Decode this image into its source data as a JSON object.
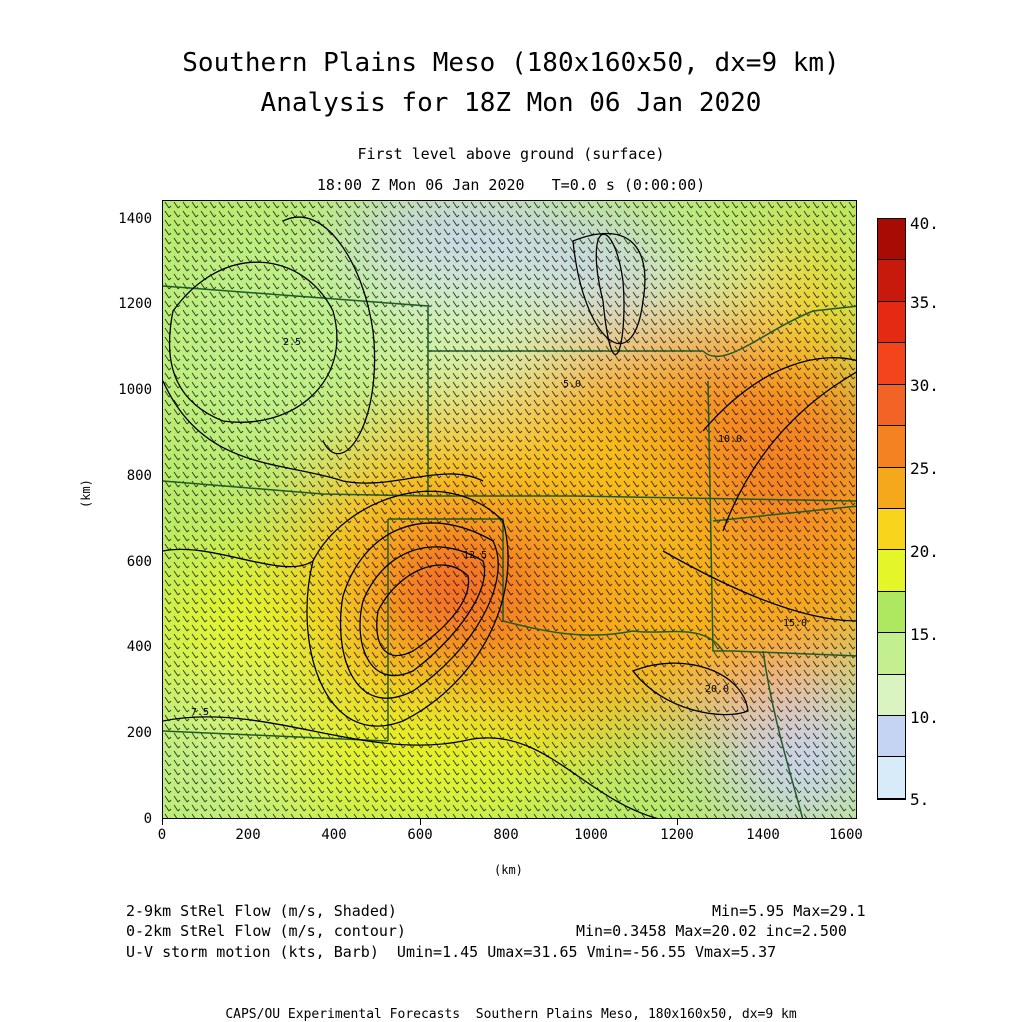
{
  "header": {
    "title_line1": "Southern Plains Meso (180x160x50, dx=9 km)",
    "title_line2": "Analysis for 18Z Mon 06 Jan 2020",
    "level": "First level above ground (surface)",
    "valid": "18:00 Z Mon 06 Jan 2020   T=0.0 s (0:00:00)"
  },
  "axes": {
    "x_label": "(km)",
    "y_label": "(km)",
    "x_ticks": [
      "0",
      "200",
      "400",
      "600",
      "800",
      "1000",
      "1200",
      "1400",
      "1600"
    ],
    "y_ticks": [
      "0",
      "200",
      "400",
      "600",
      "800",
      "1000",
      "1200",
      "1400"
    ],
    "x_range": [
      0,
      1620
    ],
    "y_range": [
      0,
      1440
    ]
  },
  "colorbar": {
    "labels": [
      "5.",
      "10.",
      "15.",
      "20.",
      "25.",
      "30.",
      "35.",
      "40."
    ],
    "colors": [
      "#d7ecf8",
      "#c4d4f2",
      "#d9f4c0",
      "#c4ef8e",
      "#aee860",
      "#e4f52a",
      "#f8d41c",
      "#f6a81c",
      "#f48220",
      "#f26426",
      "#f4441c",
      "#e42a12",
      "#c81a0c",
      "#a80a04"
    ]
  },
  "contour_labels": [
    "12.5",
    "15.0",
    "10.0",
    "20.0",
    "7.5",
    "5.0",
    "2.5"
  ],
  "legend": {
    "row1_left": "2-9km StRel Flow (m/s, Shaded)",
    "row1_right": "Min=5.95 Max=29.1",
    "row2_left": "0-2km StRel Flow (m/s, contour)",
    "row2_right": "Min=0.3458 Max=20.02 inc=2.500",
    "row3": "U-V storm motion (kts, Barb)  Umin=1.45 Umax=31.65 Vmin=-56.55 Vmax=5.37"
  },
  "footer": "CAPS/OU Experimental Forecasts  Southern Plains Meso, 180x160x50, dx=9 km"
}
